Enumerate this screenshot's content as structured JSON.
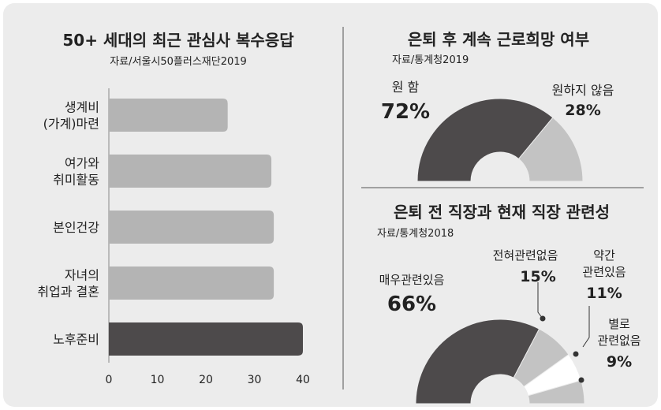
{
  "chart_data": [
    {
      "type": "bar",
      "orientation": "horizontal",
      "title": "50+ 세대의 최근 관심사 복수응답",
      "source": "자료/서울시50플러스재단2019",
      "categories": [
        [
          "생계비",
          "(가계)마련"
        ],
        [
          "여가와",
          "취미활동"
        ],
        [
          "본인건강"
        ],
        [
          "자녀의",
          "취업과 결혼"
        ],
        [
          "노후준비"
        ]
      ],
      "values": [
        24.5,
        33.5,
        34,
        34,
        40
      ],
      "highlight_index": 4,
      "xlim": [
        0,
        40
      ],
      "xticks": [
        "0",
        "10",
        "20",
        "30",
        "40"
      ],
      "colors": {
        "bar": "#b4b4b4",
        "highlight": "#4d4a4b"
      }
    },
    {
      "type": "pie",
      "shape": "half-donut",
      "title": "은퇴 후 계속 근로희망 여부",
      "source": "자료/통계청2019",
      "slices": [
        {
          "label": "원 함",
          "value": 72,
          "value_label": "72%"
        },
        {
          "label": "원하지 않음",
          "value": 28,
          "value_label": "28%"
        }
      ],
      "colors": [
        "#4d4a4b",
        "#c3c3c3"
      ]
    },
    {
      "type": "pie",
      "shape": "half-donut",
      "title": "은퇴 전 직장과 현재 직장 관련성",
      "source": "자료/통계청2018",
      "slices": [
        {
          "label": "매우관련있음",
          "value": 66,
          "value_label": "66%"
        },
        {
          "label": "전혀관련없음",
          "value": 15,
          "value_label": "15%"
        },
        {
          "label": "약간 관련있음",
          "label_lines": [
            "약간",
            "관련있음"
          ],
          "value": 11,
          "value_label": "11%"
        },
        {
          "label": "별로 관련없음",
          "label_lines": [
            "별로",
            "관련없음"
          ],
          "value": 9,
          "value_label": "9%"
        }
      ],
      "colors": [
        "#4d4a4b",
        "#c3c3c3",
        "#ffffff",
        "#c3c3c3"
      ]
    }
  ]
}
